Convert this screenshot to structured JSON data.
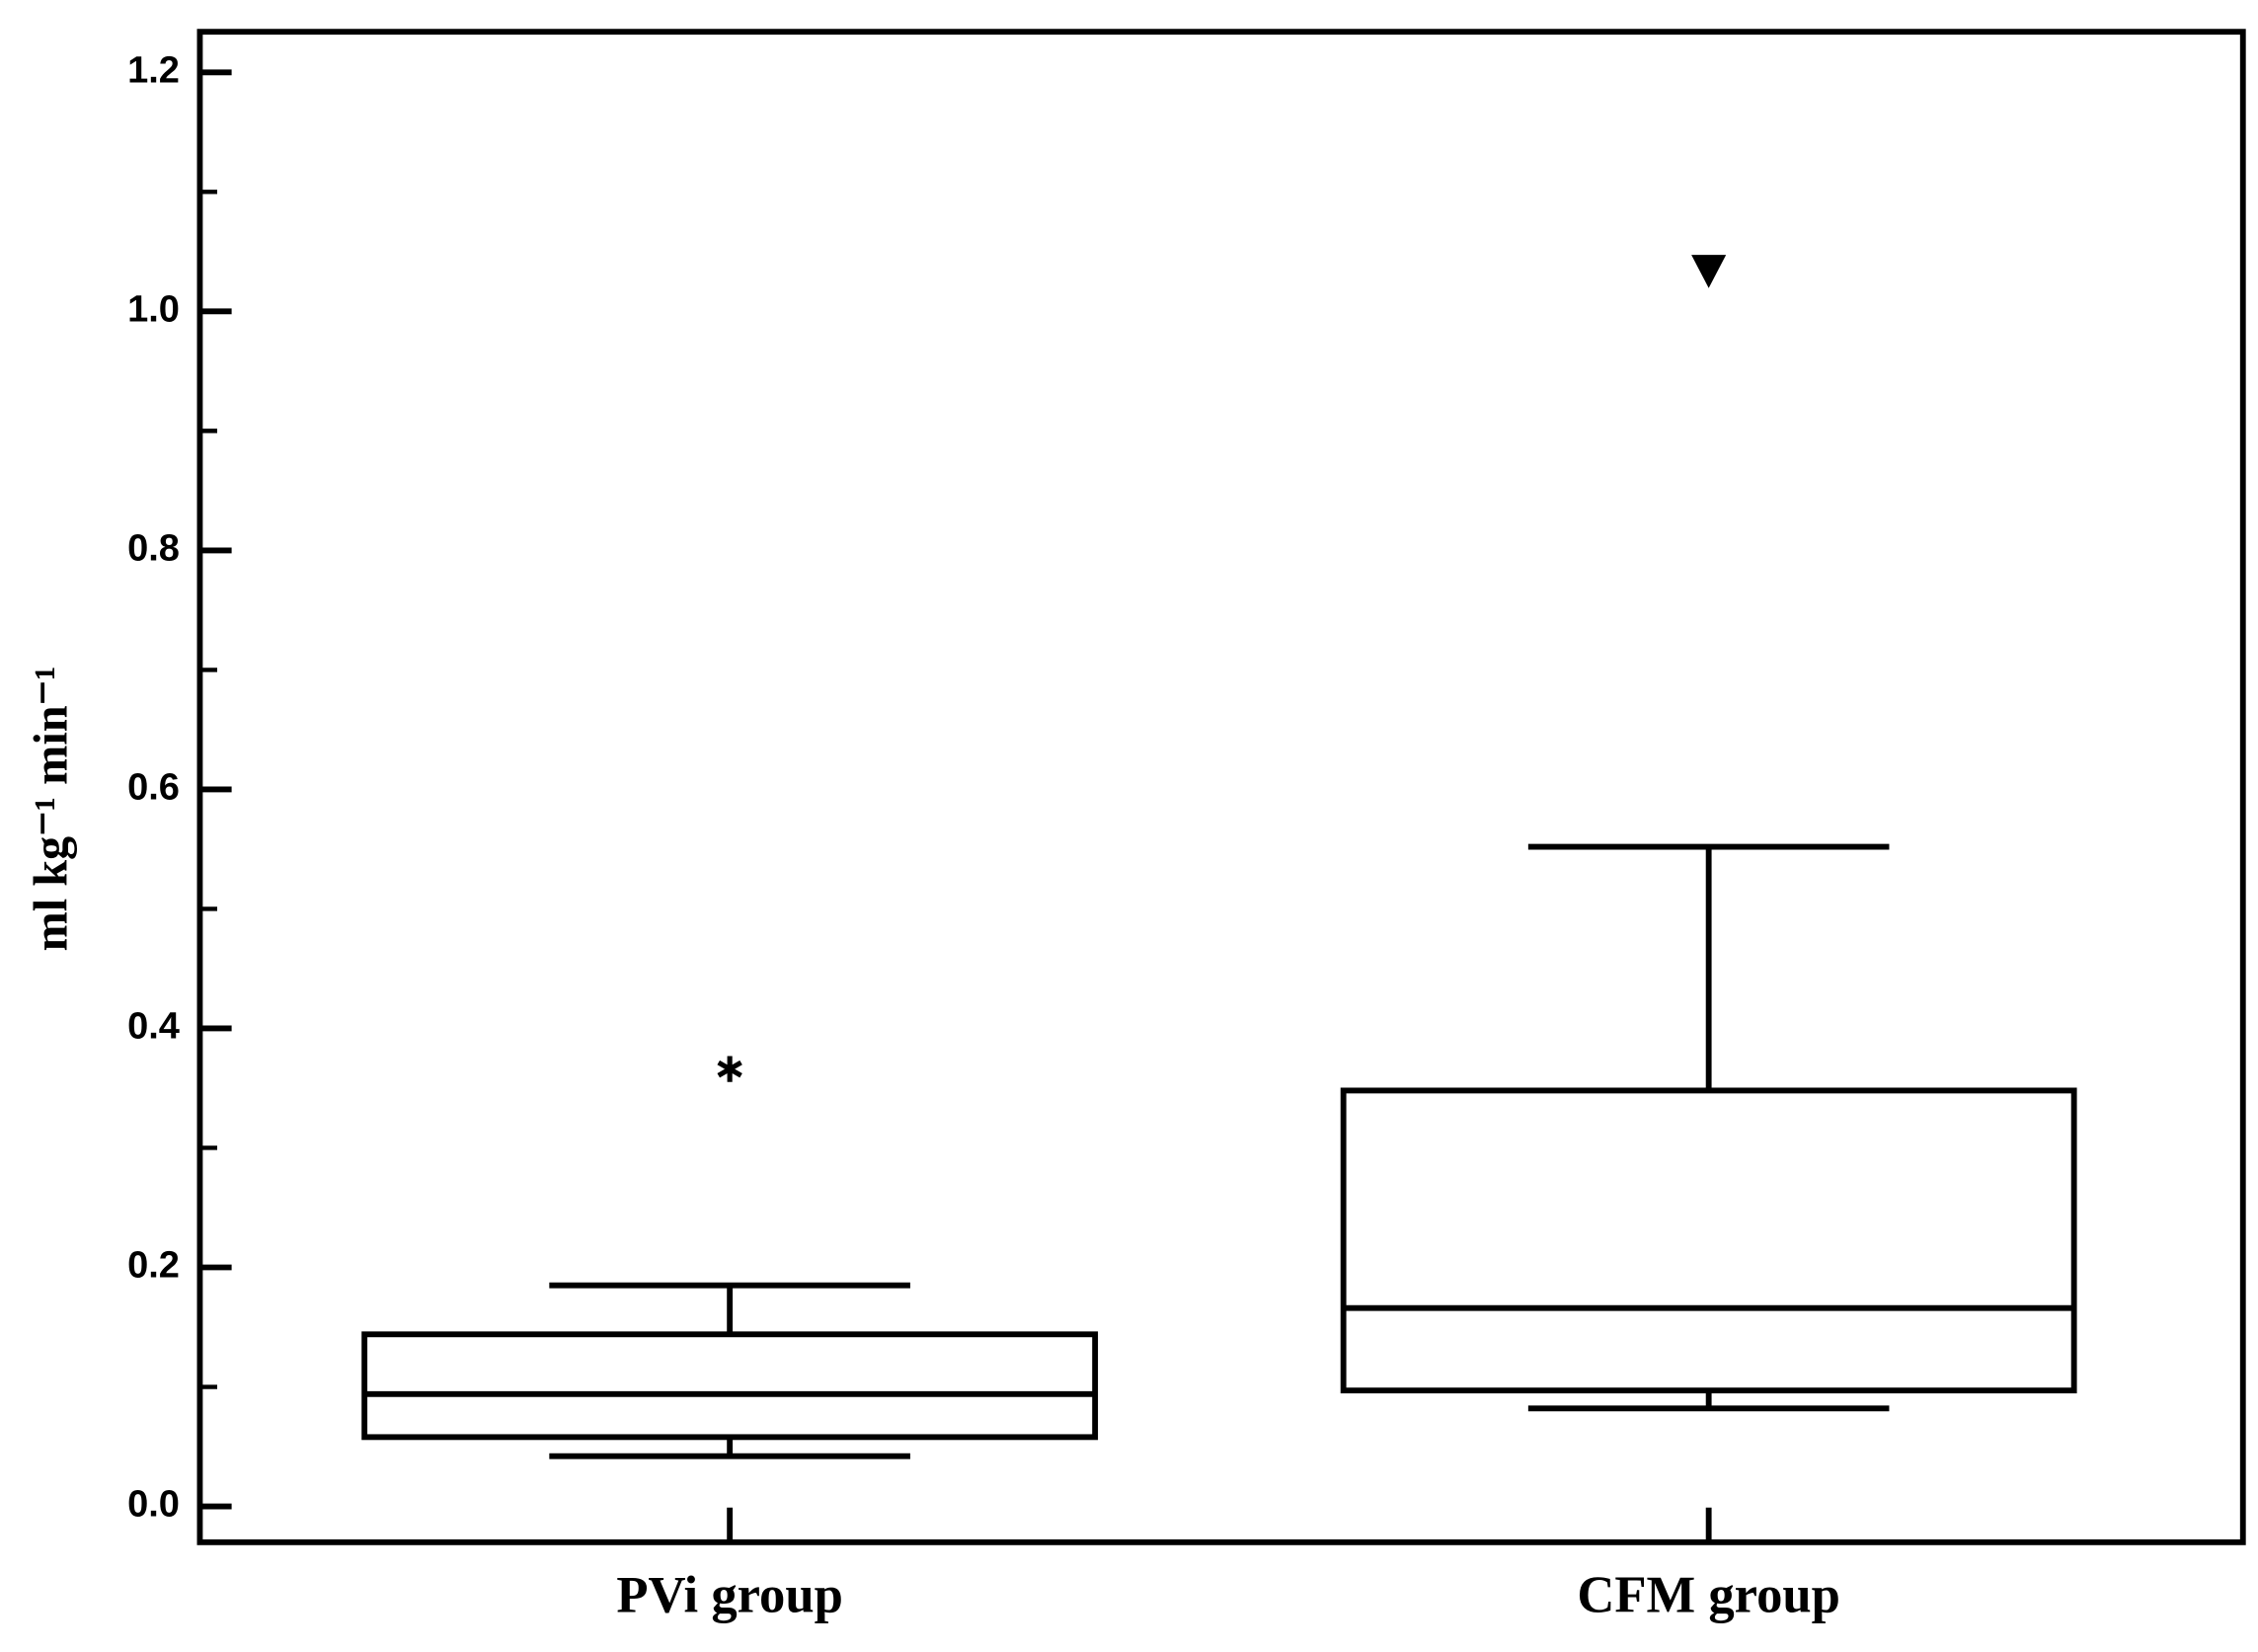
{
  "chart_data": {
    "type": "box",
    "y_label": "ml kg⁻¹ min⁻¹",
    "categories": [
      "PVi group",
      "CFM group"
    ],
    "series": [
      {
        "whisker_low": 0.042,
        "q1": 0.058,
        "median": 0.094,
        "q3": 0.144,
        "whisker_high": 0.185,
        "outliers": [
          {
            "value": 0.366,
            "marker": "star"
          }
        ]
      },
      {
        "whisker_low": 0.082,
        "q1": 0.097,
        "median": 0.166,
        "q3": 0.348,
        "whisker_high": 0.552,
        "outliers": [
          {
            "value": 1.034,
            "marker": "triangle-down"
          }
        ]
      }
    ],
    "color": "#000000",
    "ylim": [
      -0.03,
      1.234
    ],
    "yticks": [
      {
        "value": 0,
        "label": "0.0"
      },
      0.2,
      0.4,
      0.6,
      0.8,
      {
        "value": 1,
        "label": "1.0"
      },
      1.2
    ],
    "yminor_ticks": [
      0.1,
      0.3,
      0.5,
      0.7,
      0.9,
      1.1
    ]
  }
}
